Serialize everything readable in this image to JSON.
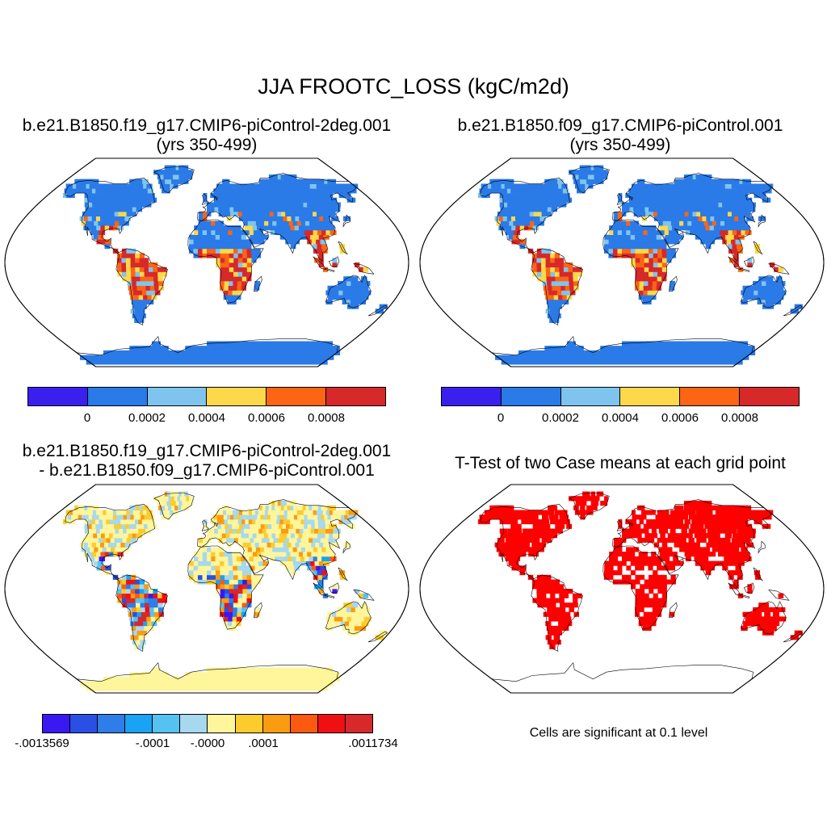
{
  "title": "JJA FROOTC_LOSS (kgC/m2d)",
  "panels": [
    {
      "title_line1": "b.e21.B1850.f19_g17.CMIP6-piControl-2deg.001",
      "title_line2": "(yrs 350-499)",
      "colorbar": {
        "colors": [
          "#3b1fee",
          "#2a7ae8",
          "#7ec4ee",
          "#fcd84a",
          "#fb6514",
          "#d7282a"
        ],
        "tick_labels": [
          "0",
          "0.0002",
          "0.0004",
          "0.0006",
          "0.0008"
        ]
      }
    },
    {
      "title_line1": "b.e21.B1850.f09_g17.CMIP6-piControl.001",
      "title_line2": "(yrs 350-499)",
      "colorbar": {
        "colors": [
          "#3b1fee",
          "#2a7ae8",
          "#7ec4ee",
          "#fcd84a",
          "#fb6514",
          "#d7282a"
        ],
        "tick_labels": [
          "0",
          "0.0002",
          "0.0004",
          "0.0006",
          "0.0008"
        ]
      }
    },
    {
      "title_line1": "b.e21.B1850.f19_g17.CMIP6-piControl-2deg.001",
      "title_line2": "- b.e21.B1850.f09_g17.CMIP6-piControl.001",
      "colorbar": {
        "colors": [
          "#3a18f2",
          "#2a4fe4",
          "#2f7de8",
          "#1aa2f5",
          "#55c2f2",
          "#a6d8ee",
          "#fff59a",
          "#fccb2e",
          "#fb9b10",
          "#fb5a10",
          "#f00f12",
          "#d7282a"
        ],
        "tick_labels": [
          "-.0013569",
          "-.0001",
          "-.0000",
          ".0001",
          ".0011734"
        ]
      }
    },
    {
      "title_line1": "T-Test of two Case means at each grid point",
      "note": "Cells are significant at 0.1 level",
      "significant_color": "#ff0000"
    }
  ],
  "map_colors": {
    "ocean": "#ffffff",
    "coast": "#000000"
  }
}
